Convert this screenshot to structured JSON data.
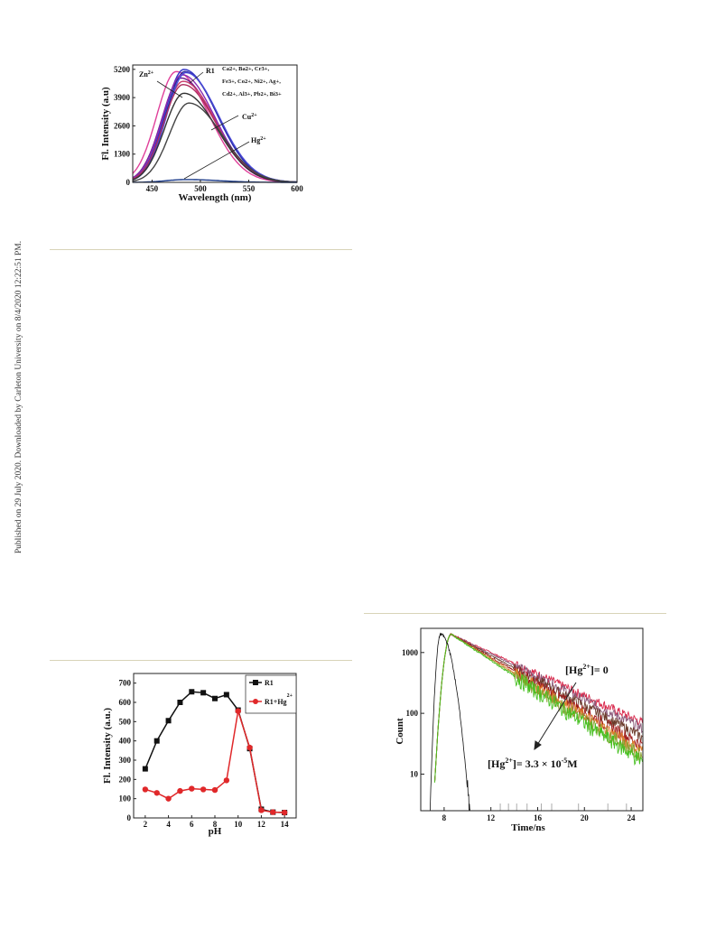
{
  "side_note": "Published on 29 July 2020. Downloaded by Carleton University on 8/4/2020 12:22:51 PM.",
  "chart_data": [
    {
      "type": "line",
      "xlabel": "Wavelength (nm)",
      "ylabel": "Fl. Intensity (a.u)",
      "xlim": [
        430,
        600
      ],
      "ylim": [
        0,
        5400
      ],
      "xticks": [
        "450",
        "500",
        "550",
        "600"
      ],
      "yticks": [
        "0",
        "1300",
        "2600",
        "3900",
        "5200"
      ],
      "annotations": {
        "zn": "Zn",
        "zn_sup": "2+",
        "r1": "R1",
        "ions_line1": "Ca2+, Ba2+, Cr3+,",
        "ions_line2": "Fe3+, Co2+, Ni2+, Ag+,",
        "ions_line3": "Cd2+, Al3+, Pb2+, Bi3+",
        "cu": "Cu",
        "cu_sup": "2+",
        "hg": "Hg",
        "hg_sup": "2+"
      },
      "series": [
        {
          "peak": 475,
          "height": 5100,
          "color": "#e0409a"
        },
        {
          "peak": 480,
          "height": 4800,
          "color": "#6a1a8a"
        },
        {
          "peak": 482,
          "height": 4650,
          "color": "#c83a6a"
        },
        {
          "peak": 483,
          "height": 5200,
          "color": "#3232c8"
        },
        {
          "peak": 484,
          "height": 5100,
          "color": "#2a2a9a"
        },
        {
          "peak": 481,
          "height": 4950,
          "color": "#8a2ab0"
        },
        {
          "peak": 485,
          "height": 5050,
          "color": "#4a4ad8"
        },
        {
          "peak": 482,
          "height": 4500,
          "color": "#b03060"
        },
        {
          "peak": 483,
          "height": 4100,
          "color": "#333333"
        },
        {
          "peak": 488,
          "height": 3650,
          "color": "#444444"
        },
        {
          "peak": 485,
          "height": 130,
          "color": "#1a3a8a"
        }
      ]
    },
    {
      "type": "line",
      "xlabel": "pH",
      "ylabel": "Fl. Intensity (a.u.)",
      "xlim": [
        1,
        15
      ],
      "ylim": [
        0,
        750
      ],
      "xticks": [
        "2",
        "4",
        "6",
        "8",
        "10",
        "12",
        "14"
      ],
      "yticks": [
        "0",
        "100",
        "200",
        "300",
        "400",
        "500",
        "600",
        "700"
      ],
      "x": [
        2,
        3,
        4,
        5,
        6,
        7,
        8,
        9,
        10,
        11,
        12,
        13,
        14
      ],
      "series": [
        {
          "name": "R1",
          "color": "#111111",
          "marker": "square",
          "values": [
            255,
            400,
            505,
            600,
            655,
            650,
            620,
            640,
            560,
            360,
            45,
            30,
            28
          ]
        },
        {
          "name": "R1+Hg",
          "name_sup": "2+",
          "color": "#e0282a",
          "marker": "circle",
          "values": [
            148,
            130,
            100,
            140,
            152,
            148,
            145,
            195,
            555,
            365,
            40,
            30,
            28
          ]
        }
      ]
    },
    {
      "type": "line",
      "xlabel": "Time/ns",
      "ylabel": "Count",
      "xlim": [
        6,
        25
      ],
      "ylim": [
        2.5,
        2500
      ],
      "yscale": "log",
      "xticks": [
        "8",
        "12",
        "16",
        "20",
        "24"
      ],
      "yticks": [
        "10",
        "100",
        "1000"
      ],
      "annotations": {
        "top_label": "[Hg2+]= 0",
        "bottom_label": "[Hg2+]= 3.3 × 10-5M"
      },
      "series": [
        {
          "color": "#d8264a",
          "tau": 4.9
        },
        {
          "color": "#8a5a7a",
          "tau": 4.6
        },
        {
          "color": "#6a3a2a",
          "tau": 4.2
        },
        {
          "color": "#a01a1a",
          "tau": 3.9
        },
        {
          "color": "#e08030",
          "tau": 3.7
        },
        {
          "color": "#8aa030",
          "tau": 3.55
        },
        {
          "color": "#46c020",
          "tau": 3.4
        }
      ],
      "irf_color": "#111111"
    }
  ]
}
